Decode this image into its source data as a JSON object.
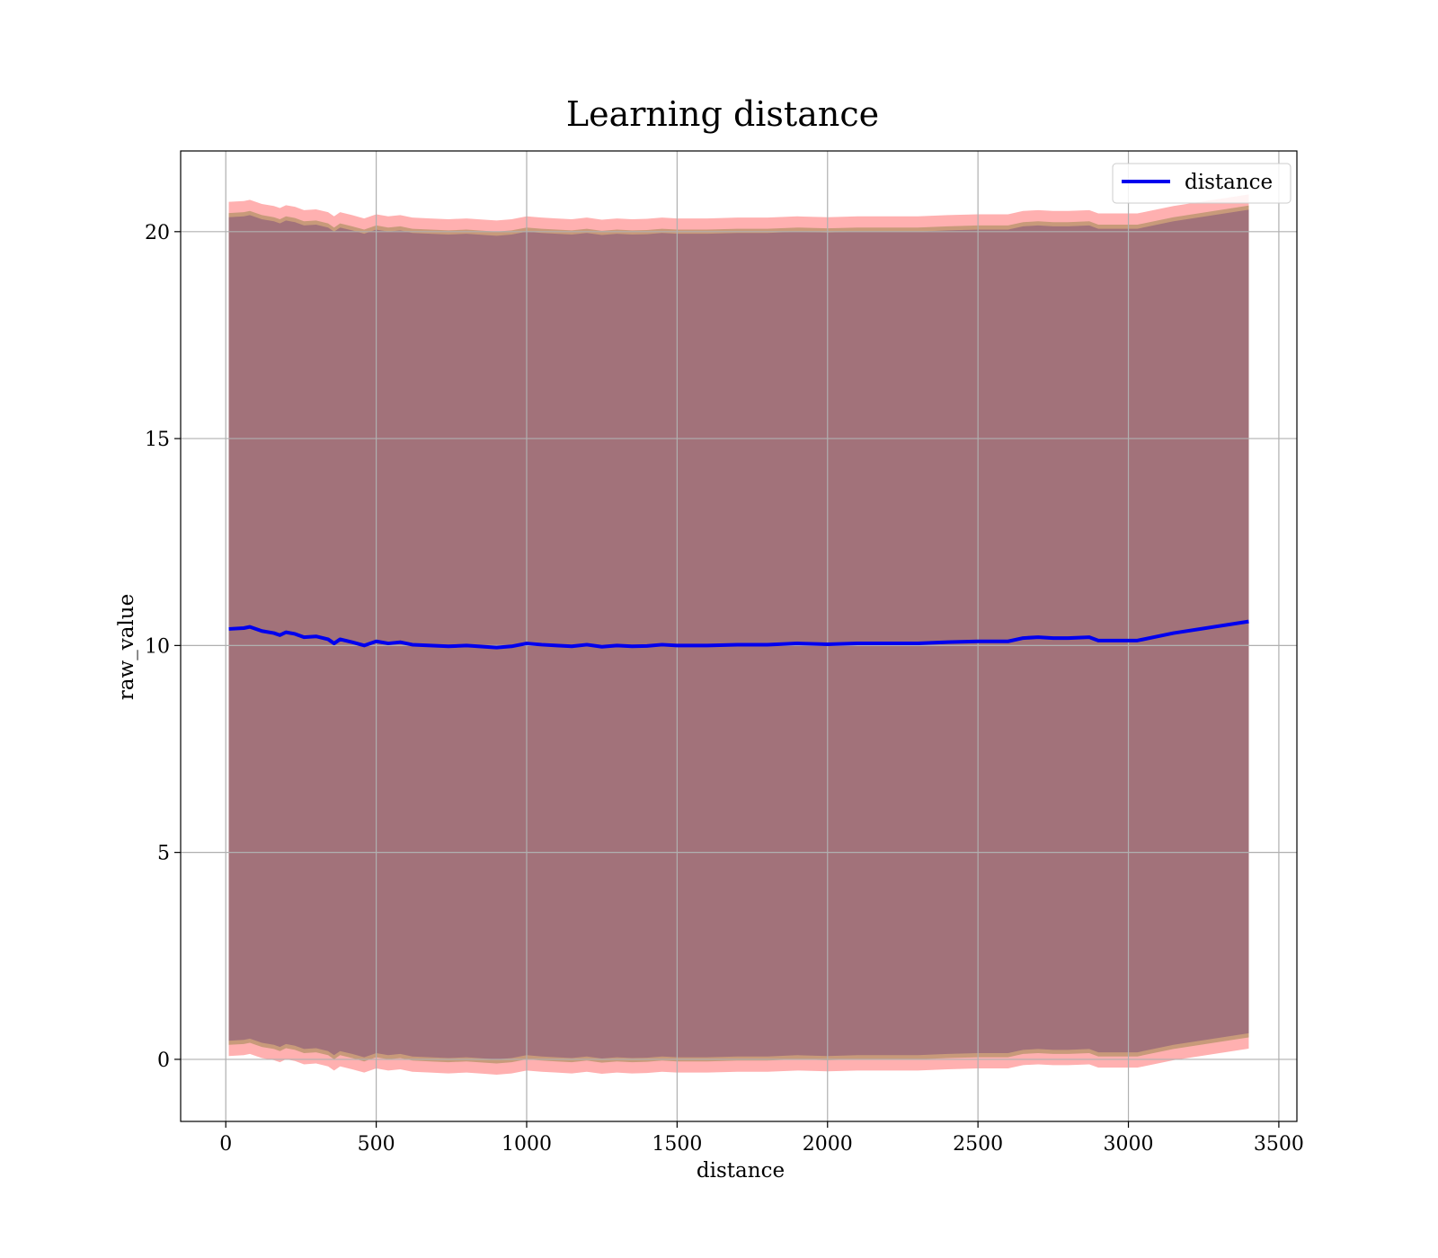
{
  "chart_data": {
    "type": "line",
    "title": "Learning distance",
    "xlabel": "distance",
    "ylabel": "raw_value",
    "xlim": [
      -150,
      3560
    ],
    "ylim": [
      -1.5,
      21.95
    ],
    "xticks": [
      0,
      500,
      1000,
      1500,
      2000,
      2500,
      3000,
      3500
    ],
    "yticks": [
      0,
      5,
      10,
      15,
      20
    ],
    "grid": true,
    "legend": {
      "position": "top-right",
      "entries": [
        "distance"
      ]
    },
    "colors": {
      "line": "#0000ee",
      "outer_band": "#ffb0b0",
      "middle_band": "#c89a7a",
      "inner_band": "#a2727a"
    },
    "series": [
      {
        "name": "distance",
        "x": [
          10,
          60,
          80,
          120,
          160,
          180,
          200,
          230,
          260,
          300,
          340,
          360,
          380,
          420,
          460,
          500,
          540,
          580,
          620,
          680,
          740,
          800,
          860,
          900,
          950,
          1000,
          1050,
          1100,
          1150,
          1200,
          1250,
          1300,
          1350,
          1400,
          1450,
          1500,
          1600,
          1700,
          1800,
          1900,
          2000,
          2100,
          2200,
          2300,
          2400,
          2500,
          2600,
          2650,
          2700,
          2750,
          2800,
          2870,
          2900,
          3000,
          3030,
          3150,
          3400
        ],
        "y": [
          10.4,
          10.42,
          10.45,
          10.35,
          10.3,
          10.25,
          10.32,
          10.28,
          10.2,
          10.22,
          10.15,
          10.05,
          10.15,
          10.08,
          10.0,
          10.1,
          10.05,
          10.08,
          10.02,
          10.0,
          9.98,
          10.0,
          9.97,
          9.95,
          9.98,
          10.05,
          10.02,
          10.0,
          9.98,
          10.02,
          9.97,
          10.0,
          9.98,
          9.99,
          10.02,
          10.0,
          10.0,
          10.02,
          10.02,
          10.05,
          10.03,
          10.05,
          10.05,
          10.05,
          10.08,
          10.1,
          10.1,
          10.18,
          10.2,
          10.18,
          10.18,
          10.2,
          10.12,
          10.12,
          10.12,
          10.3,
          10.58
        ]
      }
    ],
    "bands": {
      "outer_halfwidth": 10.32,
      "middle_halfwidth": 10.05,
      "inner_halfwidth": 9.95
    }
  }
}
